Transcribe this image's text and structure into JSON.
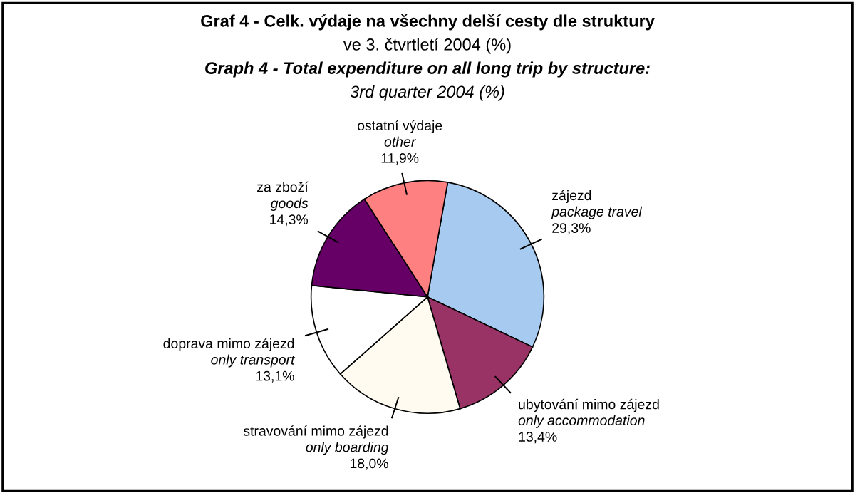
{
  "chart_data": {
    "type": "pie",
    "title": "Graf 4 - Celk. výdaje na všechny delší cesty dle struktury\nve 3. čtvrtletí 2004 (%)",
    "subtitle": "Graph 4 - Total expenditure on all long trip by structure:\n3rd quarter 2004 (%)",
    "categories": [
      "zájezd\npackage travel",
      "ubytování mimo zájezd\nonly accommodation",
      "stravování mimo zájezd\nonly boarding",
      "doprava mimo zájezd\nonly transport",
      "za zboží\ngoods",
      "ostatní výdaje\nother"
    ],
    "values": [
      29.3,
      13.4,
      18.0,
      13.1,
      14.3,
      11.9
    ],
    "value_labels": [
      "29,3%",
      "13,4%",
      "18,0%",
      "13,1%",
      "14,3%",
      "11,9%"
    ],
    "colors": [
      "#a6caf0",
      "#993366",
      "#fffbf0",
      "#ffffff",
      "#660066",
      "#ff8080"
    ],
    "legend": false
  }
}
